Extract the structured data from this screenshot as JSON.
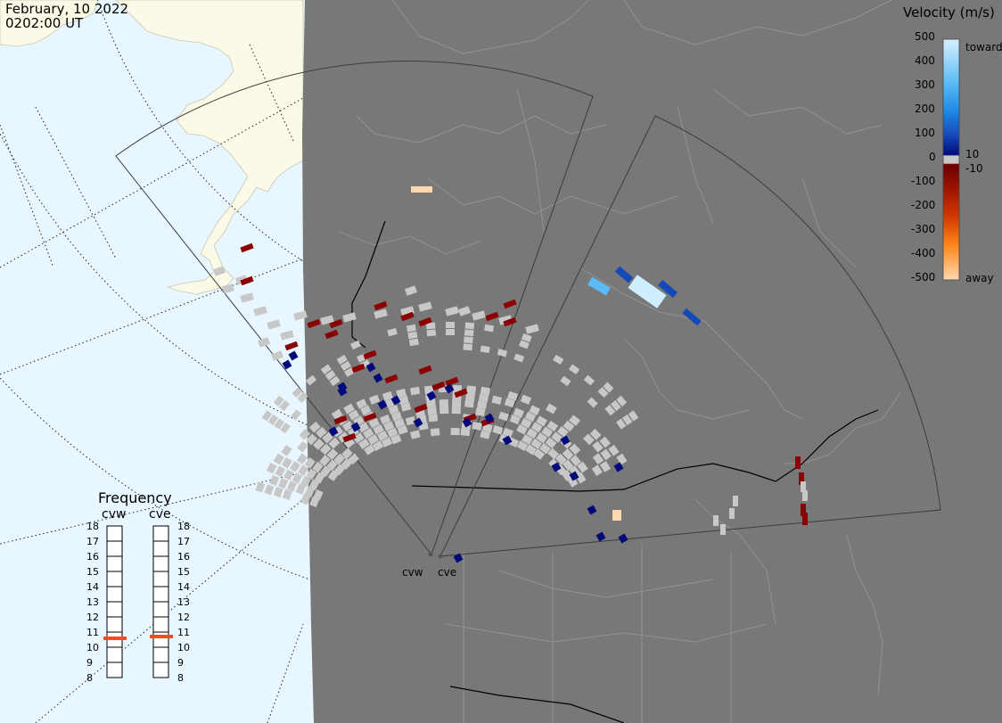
{
  "header": {
    "date": "February, 10 2022",
    "time": "0202:00 UT"
  },
  "colorbar": {
    "title": "Velocity (m/s)",
    "ticks": [
      "500",
      "400",
      "300",
      "200",
      "100",
      "0",
      "-100",
      "-200",
      "-300",
      "-400",
      "-500"
    ],
    "positive_small": "10",
    "negative_small": "-10",
    "toward_label": "toward",
    "away_label": "away",
    "gradient_colors": [
      "#d6f0ff",
      "#5bbcf5",
      "#1e88e5",
      "#1549b8",
      "#000a7a",
      "#6b0000",
      "#9a1400",
      "#d43a00",
      "#ff8a1e",
      "#ffd8b0"
    ],
    "zero_band": "#c8c8c8"
  },
  "frequency_panel": {
    "title": "Frequency",
    "radars": [
      {
        "name": "cvw",
        "value_mhz": 10.8
      },
      {
        "name": "cve",
        "value_mhz": 10.9
      }
    ],
    "ticks": [
      "18",
      "17",
      "16",
      "15",
      "14",
      "13",
      "12",
      "11",
      "10",
      "9",
      "8"
    ],
    "marker_color": "#ff4a1c"
  },
  "radars": [
    {
      "name": "cvw"
    },
    {
      "name": "cve"
    }
  ],
  "map_colors": {
    "night": "#787878",
    "ocean_day": "#e8f6ff",
    "land_day": "#fafae6",
    "land_lines": "#9a9a9a",
    "fov_outline": "#3c3c3c",
    "groundscatter": "#c8c8c8"
  },
  "scatter_colors": {
    "dark_red": "#8b0000",
    "navy": "#000a7a",
    "mid_blue": "#1549b8",
    "sky": "#5bbcf5",
    "pale": "#cfeeff",
    "peach": "#ffd8b0"
  }
}
